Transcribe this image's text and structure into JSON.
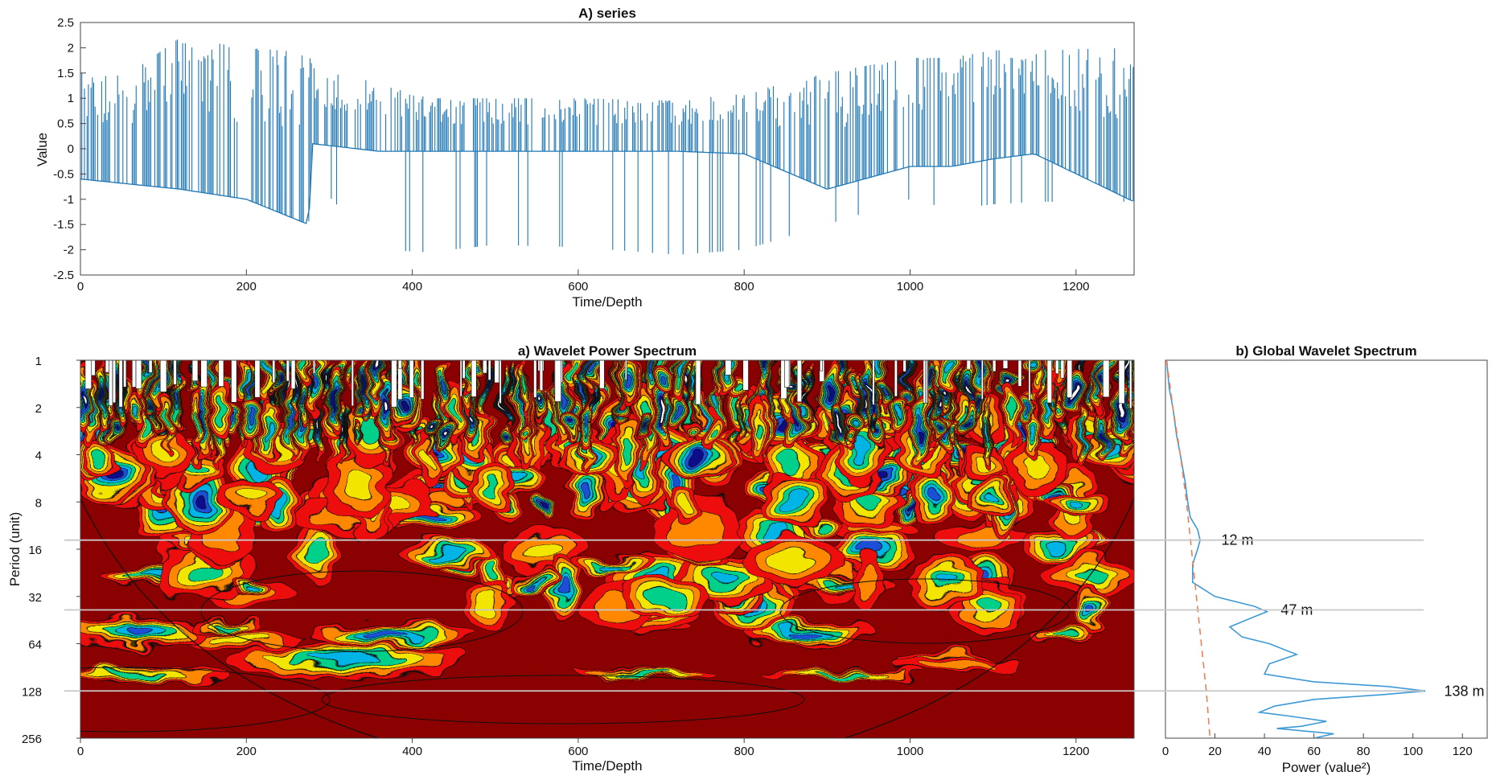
{
  "chart_data": [
    {
      "id": "series",
      "type": "line",
      "title": "A) series",
      "xlabel": "Time/Depth",
      "ylabel": "Value",
      "xlim": [
        0,
        1270
      ],
      "ylim": [
        -2.5,
        2.5
      ],
      "xticks": [
        "0",
        "200",
        "400",
        "600",
        "800",
        "1000",
        "1200"
      ],
      "yticks": [
        "2.5",
        "2",
        "1.5",
        "1",
        "0.5",
        "0",
        "-0.5",
        "-1",
        "-1.5",
        "-2",
        "-2.5"
      ],
      "color": "#1f77b4",
      "envelope": {
        "x": [
          0,
          60,
          120,
          200,
          275,
          280,
          360,
          420,
          500,
          600,
          720,
          800,
          900,
          1000,
          1050,
          1100,
          1150,
          1270
        ],
        "upper": [
          1.5,
          1.5,
          2.2,
          2.0,
          1.9,
          1.6,
          1.3,
          1.0,
          1.0,
          1.0,
          0.95,
          1.1,
          1.5,
          1.8,
          1.8,
          1.95,
          1.95,
          2.0
        ],
        "lower": [
          -0.6,
          -0.7,
          -0.8,
          -1.0,
          -1.5,
          0.1,
          -0.05,
          -0.05,
          -0.05,
          -0.05,
          -0.05,
          -0.1,
          -0.8,
          -0.35,
          -0.35,
          -0.2,
          -0.1,
          -1.05
        ],
        "drops": [
          -0.6,
          -0.7,
          -0.8,
          -1.0,
          -1.5,
          -0.6,
          -2.0,
          -2.05,
          -1.9,
          -1.95,
          -2.1,
          -2.0,
          -1.5,
          -1.0,
          -1.2,
          -1.1,
          -1.05,
          -1.05
        ]
      }
    },
    {
      "id": "wavelet_power",
      "type": "heatmap",
      "title": "a) Wavelet Power Spectrum",
      "xlabel": "Time/Depth",
      "ylabel": "Period (unit)",
      "xlim": [
        0,
        1270
      ],
      "ylim": [
        1,
        256
      ],
      "y_scale": "log2",
      "xticks": [
        "0",
        "200",
        "400",
        "600",
        "800",
        "1000",
        "1200"
      ],
      "yticks": [
        "1",
        "2",
        "4",
        "8",
        "16",
        "32",
        "64",
        "128",
        "256"
      ],
      "colormap": [
        "#ffffff",
        "#08088c",
        "#1f4fd8",
        "#00b4e6",
        "#00d08a",
        "#f2e600",
        "#ff8800",
        "#ee1111",
        "#8b0000"
      ],
      "highlight_periods": [
        14,
        39,
        128
      ]
    },
    {
      "id": "global_wavelet",
      "type": "line",
      "title": "b) Global Wavelet Spectrum",
      "xlabel": "Power (value²)",
      "xlim": [
        0,
        130
      ],
      "xticks": [
        "0",
        "20",
        "40",
        "60",
        "80",
        "100",
        "120"
      ],
      "y_scale": "log2",
      "ylim": [
        1,
        256
      ],
      "series": [
        {
          "style": "solid",
          "color": "#3d9ad6",
          "points": [
            [
              0.5,
              1
            ],
            [
              1.5,
              1.5
            ],
            [
              3,
              2
            ],
            [
              4.5,
              3
            ],
            [
              6,
              4
            ],
            [
              8,
              6
            ],
            [
              9,
              8
            ],
            [
              10,
              10
            ],
            [
              13,
              12
            ],
            [
              14,
              14
            ],
            [
              13,
              16
            ],
            [
              11,
              20
            ],
            [
              11,
              26
            ],
            [
              20,
              32
            ],
            [
              36,
              37
            ],
            [
              41,
              40
            ],
            [
              33,
              45
            ],
            [
              26,
              50
            ],
            [
              31,
              58
            ],
            [
              42,
              64
            ],
            [
              53,
              75
            ],
            [
              42,
              86
            ],
            [
              40,
              100
            ],
            [
              60,
              112
            ],
            [
              90,
              120
            ],
            [
              105,
              128
            ],
            [
              88,
              135
            ],
            [
              60,
              145
            ],
            [
              44,
              160
            ],
            [
              38,
              175
            ],
            [
              50,
              185
            ],
            [
              65,
              200
            ],
            [
              55,
              215
            ],
            [
              45,
              222
            ],
            [
              68,
              240
            ],
            [
              60,
              256
            ]
          ]
        },
        {
          "style": "dashed",
          "color": "#e8805a",
          "points": [
            [
              0.5,
              1
            ],
            [
              3,
              2
            ],
            [
              6,
              4
            ],
            [
              8.5,
              8
            ],
            [
              10.5,
              16
            ],
            [
              12.5,
              32
            ],
            [
              14.5,
              64
            ],
            [
              16.5,
              128
            ],
            [
              18,
              256
            ]
          ]
        }
      ],
      "annotations": [
        {
          "text": "12 m",
          "period": 14,
          "power": 20
        },
        {
          "text": "47 m",
          "period": 39,
          "power": 44
        },
        {
          "text": "138 m",
          "period": 128,
          "power": 110
        }
      ]
    }
  ]
}
